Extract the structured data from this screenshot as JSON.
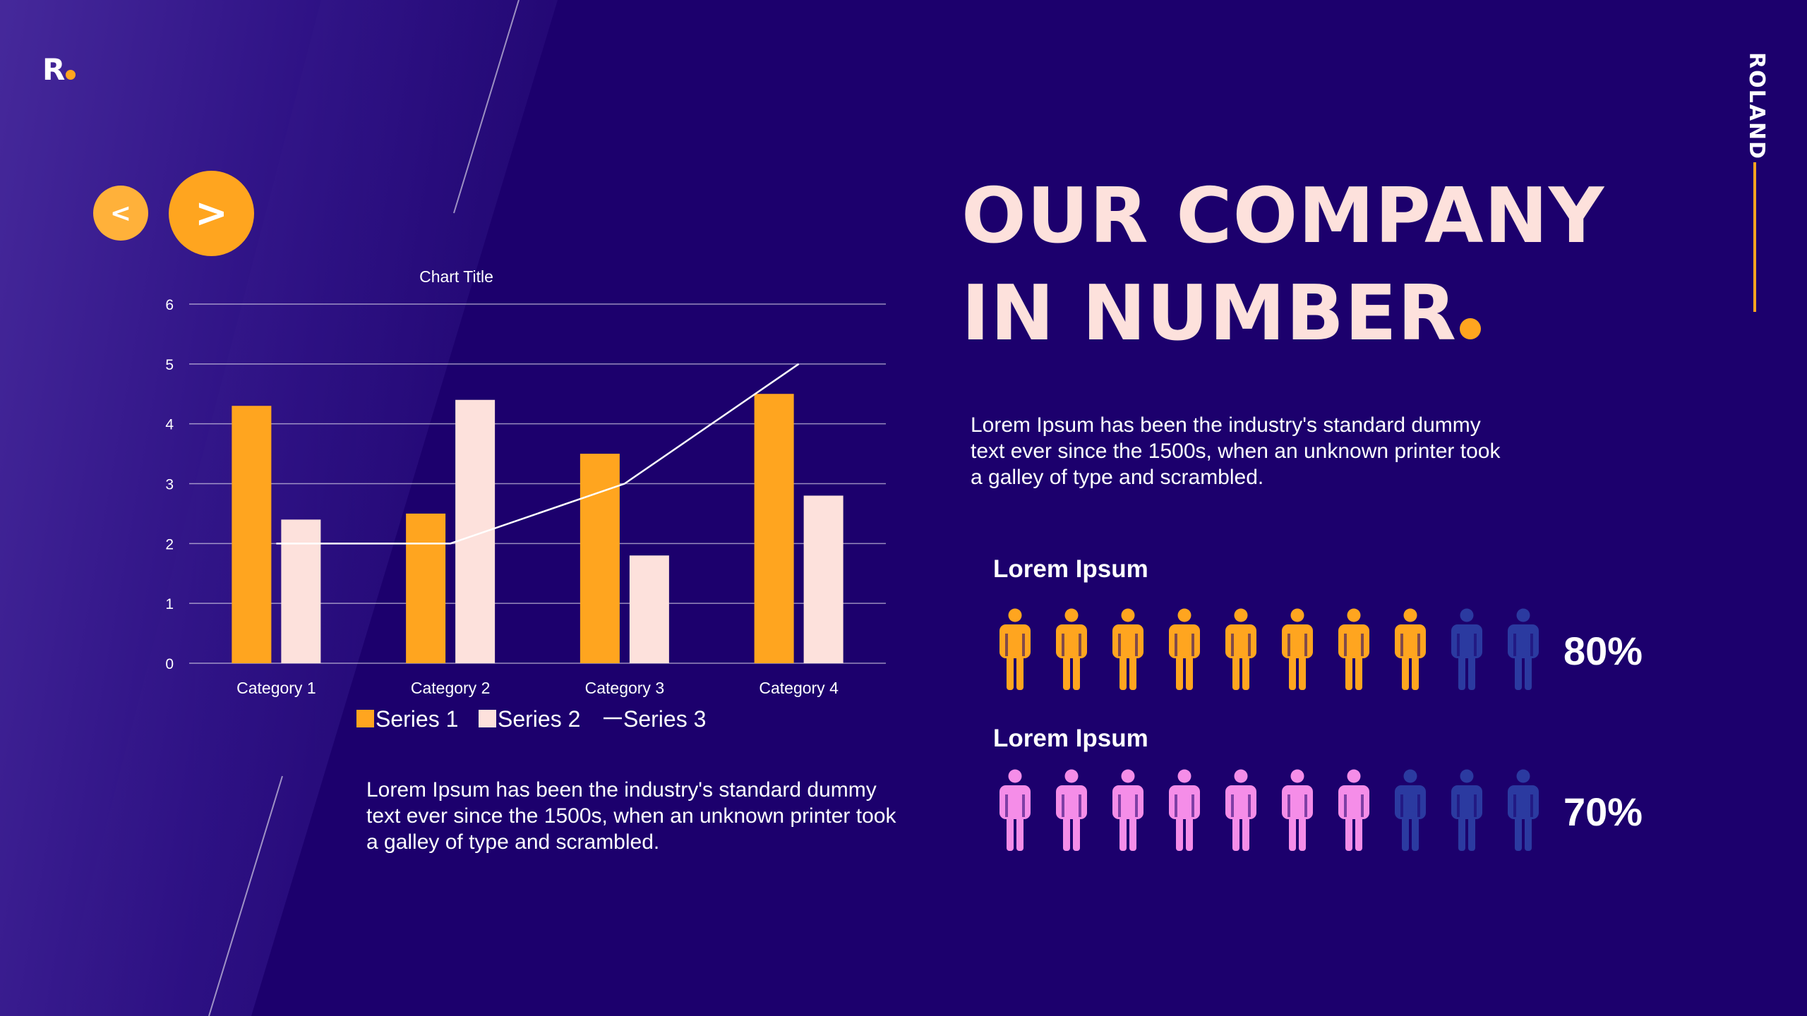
{
  "brand": {
    "logo_text": "R",
    "side_label": "ROLAND"
  },
  "nav": {
    "prev_label": "<",
    "next_label": ">"
  },
  "heading": {
    "line1": "OUR COMPANY",
    "line2": "IN NUMBER"
  },
  "intro_text": "Lorem Ipsum has been the industry's standard dummy text ever since the 1500s, when an unknown printer took a galley of type and scrambled.",
  "chart_caption": "Lorem Ipsum has been the industry's standard dummy text ever since the 1500s, when an unknown printer took a galley of type and scrambled.",
  "stats": [
    {
      "title": "Lorem Ipsum",
      "percent": "80%",
      "filled": 8,
      "total": 10,
      "fill_color": "#ffa51f",
      "empty_color": "#2b3aa0"
    },
    {
      "title": "Lorem Ipsum",
      "percent": "70%",
      "filled": 7,
      "total": 10,
      "fill_color": "#f58de8",
      "empty_color": "#2b3aa0"
    }
  ],
  "colors": {
    "background": "#1c006d",
    "accent": "#ffa51f",
    "heading": "#fde1dc",
    "series2": "#fde1dc"
  },
  "chart_data": {
    "type": "bar",
    "title": "Chart Title",
    "categories": [
      "Category 1",
      "Category 2",
      "Category 3",
      "Category 4"
    ],
    "series": [
      {
        "name": "Series 1",
        "type": "bar",
        "values": [
          4.3,
          2.5,
          3.5,
          4.5
        ],
        "color": "#ffa51f"
      },
      {
        "name": "Series 2",
        "type": "bar",
        "values": [
          2.4,
          4.4,
          1.8,
          2.8
        ],
        "color": "#fde1dc"
      },
      {
        "name": "Series 3",
        "type": "line",
        "values": [
          2,
          2,
          3,
          5
        ],
        "color": "#ffffff"
      }
    ],
    "ylim": [
      0,
      6
    ],
    "yticks": [
      0,
      1,
      2,
      3,
      4,
      5,
      6
    ],
    "grid": true,
    "legend": "bottom"
  }
}
